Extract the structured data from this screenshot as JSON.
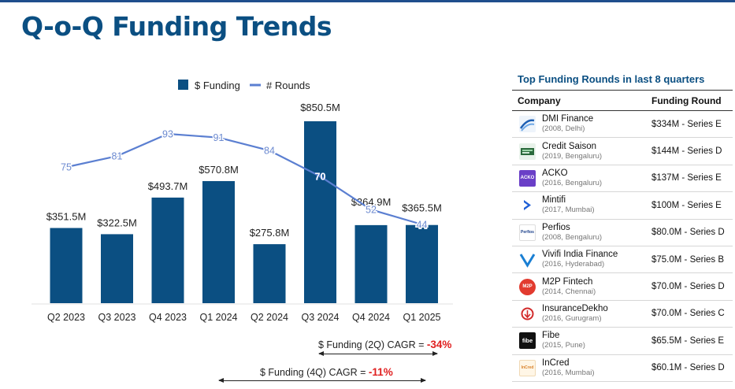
{
  "page": {
    "title": "Q-o-Q Funding Trends"
  },
  "chart_data": {
    "type": "bar",
    "categories": [
      "Q2 2023",
      "Q3 2023",
      "Q4 2023",
      "Q1 2024",
      "Q2 2024",
      "Q3 2024",
      "Q4 2024",
      "Q1 2025"
    ],
    "series": [
      {
        "name": "$ Funding",
        "type": "bar",
        "values": [
          351.5,
          322.5,
          493.7,
          570.8,
          275.8,
          850.5,
          364.9,
          365.5
        ],
        "labels": [
          "$351.5M",
          "$322.5M",
          "$493.7M",
          "$570.8M",
          "$275.8M",
          "$850.5M",
          "$364.9M",
          "$365.5M"
        ]
      },
      {
        "name": "# Rounds",
        "type": "line",
        "values": [
          75,
          81,
          93,
          91,
          84,
          70,
          52,
          44
        ]
      }
    ],
    "legend": "top",
    "colors": {
      "bars": "#0b4f82",
      "line": "#5b7fd1"
    },
    "grid": false
  },
  "cagr": {
    "two_q": {
      "label": "$ Funding (2Q) CAGR =",
      "value": "-34%"
    },
    "four_q": {
      "label": "$ Funding (4Q) CAGR =",
      "value": "-11%"
    }
  },
  "table": {
    "title": "Top Funding Rounds in last 8 quarters",
    "headers": [
      "Company",
      "Funding Round"
    ],
    "rows": [
      {
        "company": "DMI Finance",
        "meta": "(2008, Delhi)",
        "round": "$334M - Series E",
        "logo": "dmi-logo"
      },
      {
        "company": "Credit Saison",
        "meta": "(2019, Bengaluru)",
        "round": "$144M - Series D",
        "logo": "credit-saison-logo"
      },
      {
        "company": "ACKO",
        "meta": "(2016, Bengaluru)",
        "round": "$137M - Series E",
        "logo": "acko-logo"
      },
      {
        "company": "Mintifi",
        "meta": "(2017, Mumbai)",
        "round": "$100M - Series E",
        "logo": "mintifi-logo"
      },
      {
        "company": "Perfios",
        "meta": "(2008, Bengaluru)",
        "round": "$80.0M - Series D",
        "logo": "perfios-logo"
      },
      {
        "company": "Vivifi India Finance",
        "meta": "(2016, Hyderabad)",
        "round": "$75.0M - Series B",
        "logo": "vivifi-logo"
      },
      {
        "company": "M2P Fintech",
        "meta": "(2014, Chennai)",
        "round": "$70.0M - Series D",
        "logo": "m2p-logo"
      },
      {
        "company": "InsuranceDekho",
        "meta": "(2016, Gurugram)",
        "round": "$70.0M - Series C",
        "logo": "insurancedekho-logo"
      },
      {
        "company": "Fibe",
        "meta": "(2015, Pune)",
        "round": "$65.5M - Series E",
        "logo": "fibe-logo"
      },
      {
        "company": "InCred",
        "meta": "(2016, Mumbai)",
        "round": "$60.1M - Series D",
        "logo": "incred-logo"
      }
    ],
    "logo_texts": {
      "acko": "ACKO",
      "perfios": "Perfios",
      "m2p": "M2P",
      "fibe": "fibe",
      "incred": "InCred"
    }
  }
}
